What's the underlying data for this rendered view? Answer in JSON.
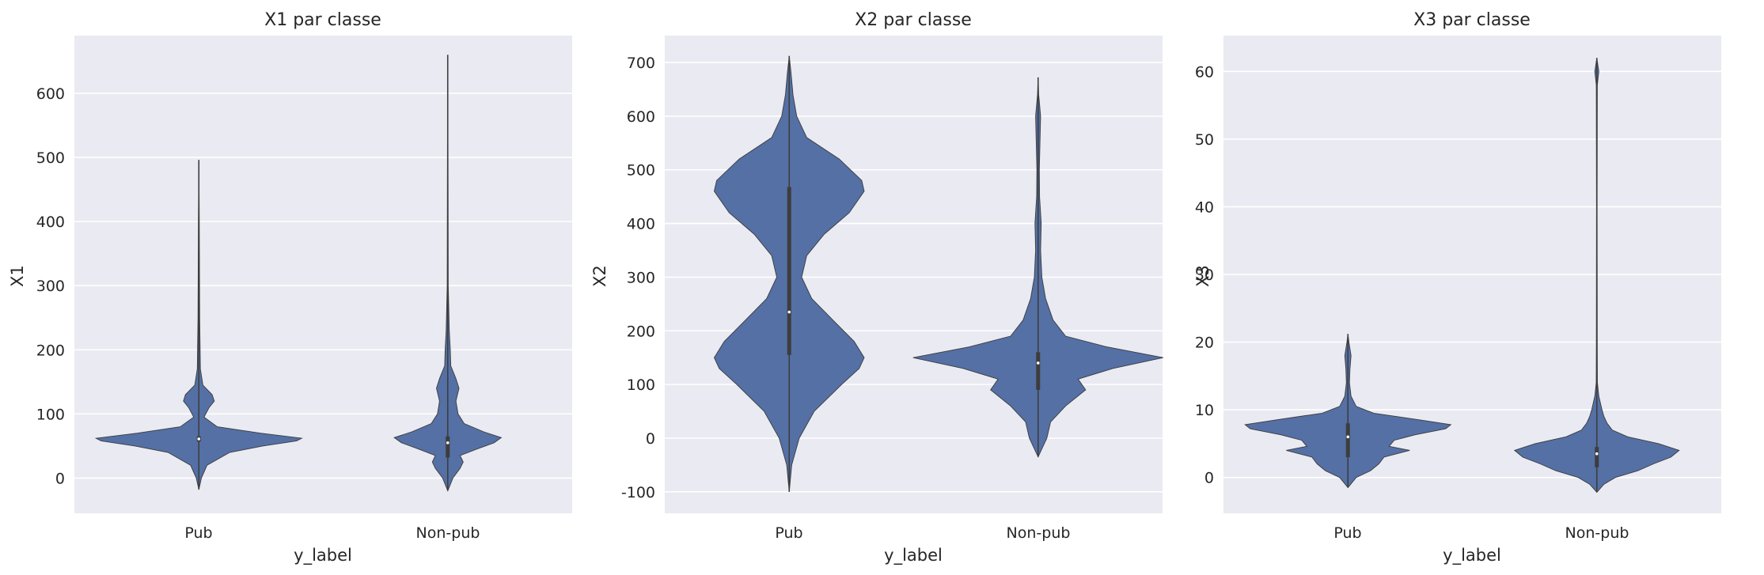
{
  "chart_data": [
    {
      "type": "violin",
      "title": "X1 par classe",
      "xlabel": "y_label",
      "ylabel": "X1",
      "ylim": [
        -55,
        690
      ],
      "yticks": [
        0,
        100,
        200,
        300,
        400,
        500,
        600
      ],
      "categories": [
        "Pub",
        "Non-pub"
      ],
      "grid": true,
      "violins": [
        {
          "category": "Pub",
          "min": -18,
          "max": 496,
          "q1": 57,
          "median": 61,
          "q3": 65,
          "density": [
            [
              -18,
              0
            ],
            [
              0,
              0.025
            ],
            [
              20,
              0.08
            ],
            [
              40,
              0.3
            ],
            [
              50,
              0.62
            ],
            [
              58,
              0.95
            ],
            [
              62,
              1.0
            ],
            [
              70,
              0.6
            ],
            [
              80,
              0.18
            ],
            [
              95,
              0.05
            ],
            [
              110,
              0.1
            ],
            [
              120,
              0.15
            ],
            [
              130,
              0.13
            ],
            [
              145,
              0.04
            ],
            [
              170,
              0.015
            ],
            [
              250,
              0.008
            ],
            [
              400,
              0.004
            ],
            [
              496,
              0
            ]
          ]
        },
        {
          "category": "Non-pub",
          "min": -20,
          "max": 660,
          "q1": 32,
          "median": 55,
          "q3": 65,
          "density": [
            [
              -20,
              0
            ],
            [
              0,
              0.05
            ],
            [
              15,
              0.12
            ],
            [
              25,
              0.15
            ],
            [
              35,
              0.12
            ],
            [
              45,
              0.28
            ],
            [
              55,
              0.45
            ],
            [
              63,
              0.52
            ],
            [
              72,
              0.35
            ],
            [
              85,
              0.16
            ],
            [
              100,
              0.1
            ],
            [
              120,
              0.08
            ],
            [
              140,
              0.11
            ],
            [
              155,
              0.08
            ],
            [
              175,
              0.03
            ],
            [
              200,
              0.025
            ],
            [
              230,
              0.015
            ],
            [
              300,
              0.005
            ],
            [
              500,
              0.003
            ],
            [
              660,
              0
            ]
          ]
        }
      ]
    },
    {
      "type": "violin",
      "title": "X2 par classe",
      "xlabel": "y_label",
      "ylabel": "X2",
      "ylim": [
        -140,
        750
      ],
      "yticks": [
        -100,
        0,
        100,
        200,
        300,
        400,
        500,
        600,
        700
      ],
      "categories": [
        "Pub",
        "Non-pub"
      ],
      "grid": true,
      "violins": [
        {
          "category": "Pub",
          "min": -100,
          "max": 712,
          "q1": 155,
          "median": 235,
          "q3": 468,
          "density": [
            [
              -100,
              0
            ],
            [
              -50,
              0.02
            ],
            [
              0,
              0.08
            ],
            [
              50,
              0.2
            ],
            [
              100,
              0.42
            ],
            [
              130,
              0.56
            ],
            [
              150,
              0.6
            ],
            [
              180,
              0.52
            ],
            [
              220,
              0.35
            ],
            [
              260,
              0.18
            ],
            [
              300,
              0.1
            ],
            [
              340,
              0.14
            ],
            [
              380,
              0.28
            ],
            [
              420,
              0.48
            ],
            [
              460,
              0.6
            ],
            [
              480,
              0.58
            ],
            [
              520,
              0.4
            ],
            [
              560,
              0.14
            ],
            [
              600,
              0.06
            ],
            [
              640,
              0.03
            ],
            [
              680,
              0.015
            ],
            [
              712,
              0
            ]
          ]
        },
        {
          "category": "Non-pub",
          "min": -35,
          "max": 672,
          "q1": 90,
          "median": 140,
          "q3": 160,
          "density": [
            [
              -35,
              0
            ],
            [
              0,
              0.07
            ],
            [
              30,
              0.1
            ],
            [
              60,
              0.22
            ],
            [
              90,
              0.38
            ],
            [
              110,
              0.32
            ],
            [
              130,
              0.6
            ],
            [
              150,
              1.0
            ],
            [
              170,
              0.55
            ],
            [
              190,
              0.22
            ],
            [
              220,
              0.12
            ],
            [
              260,
              0.06
            ],
            [
              300,
              0.03
            ],
            [
              350,
              0.02
            ],
            [
              400,
              0.025
            ],
            [
              450,
              0.012
            ],
            [
              500,
              0.01
            ],
            [
              550,
              0.015
            ],
            [
              600,
              0.02
            ],
            [
              640,
              0.005
            ],
            [
              672,
              0
            ]
          ]
        }
      ]
    },
    {
      "type": "violin",
      "title": "X3 par classe",
      "xlabel": "y_label",
      "ylabel": "X3",
      "ylim": [
        -5.3,
        65.3
      ],
      "yticks": [
        0,
        10,
        20,
        30,
        40,
        50,
        60
      ],
      "categories": [
        "Pub",
        "Non-pub"
      ],
      "grid": true,
      "violins": [
        {
          "category": "Pub",
          "min": -1.5,
          "max": 21.2,
          "q1": 3,
          "median": 6,
          "q3": 8,
          "density": [
            [
              -1.5,
              0
            ],
            [
              0,
              0.08
            ],
            [
              1,
              0.22
            ],
            [
              2,
              0.3
            ],
            [
              3,
              0.35
            ],
            [
              4,
              0.6
            ],
            [
              4.6,
              0.4
            ],
            [
              5.5,
              0.45
            ],
            [
              6.3,
              0.65
            ],
            [
              7.2,
              0.95
            ],
            [
              7.8,
              1.0
            ],
            [
              8.5,
              0.7
            ],
            [
              9.5,
              0.25
            ],
            [
              10.5,
              0.08
            ],
            [
              12,
              0.03
            ],
            [
              14,
              0.015
            ],
            [
              16,
              0.02
            ],
            [
              18,
              0.03
            ],
            [
              20,
              0.01
            ],
            [
              21.2,
              0
            ]
          ]
        },
        {
          "category": "Non-pub",
          "min": -2.2,
          "max": 62,
          "q1": 1.5,
          "median": 3.5,
          "q3": 4.5,
          "density": [
            [
              -2.2,
              0
            ],
            [
              -1,
              0.07
            ],
            [
              0,
              0.18
            ],
            [
              1,
              0.4
            ],
            [
              2,
              0.55
            ],
            [
              3,
              0.72
            ],
            [
              4,
              0.8
            ],
            [
              5,
              0.6
            ],
            [
              6,
              0.3
            ],
            [
              7,
              0.15
            ],
            [
              8,
              0.1
            ],
            [
              9,
              0.07
            ],
            [
              10,
              0.05
            ],
            [
              12,
              0.02
            ],
            [
              14,
              0.006
            ],
            [
              20,
              0.004
            ],
            [
              40,
              0.003
            ],
            [
              58,
              0.005
            ],
            [
              60,
              0.02
            ],
            [
              61,
              0.01
            ],
            [
              62,
              0
            ]
          ]
        }
      ]
    }
  ]
}
